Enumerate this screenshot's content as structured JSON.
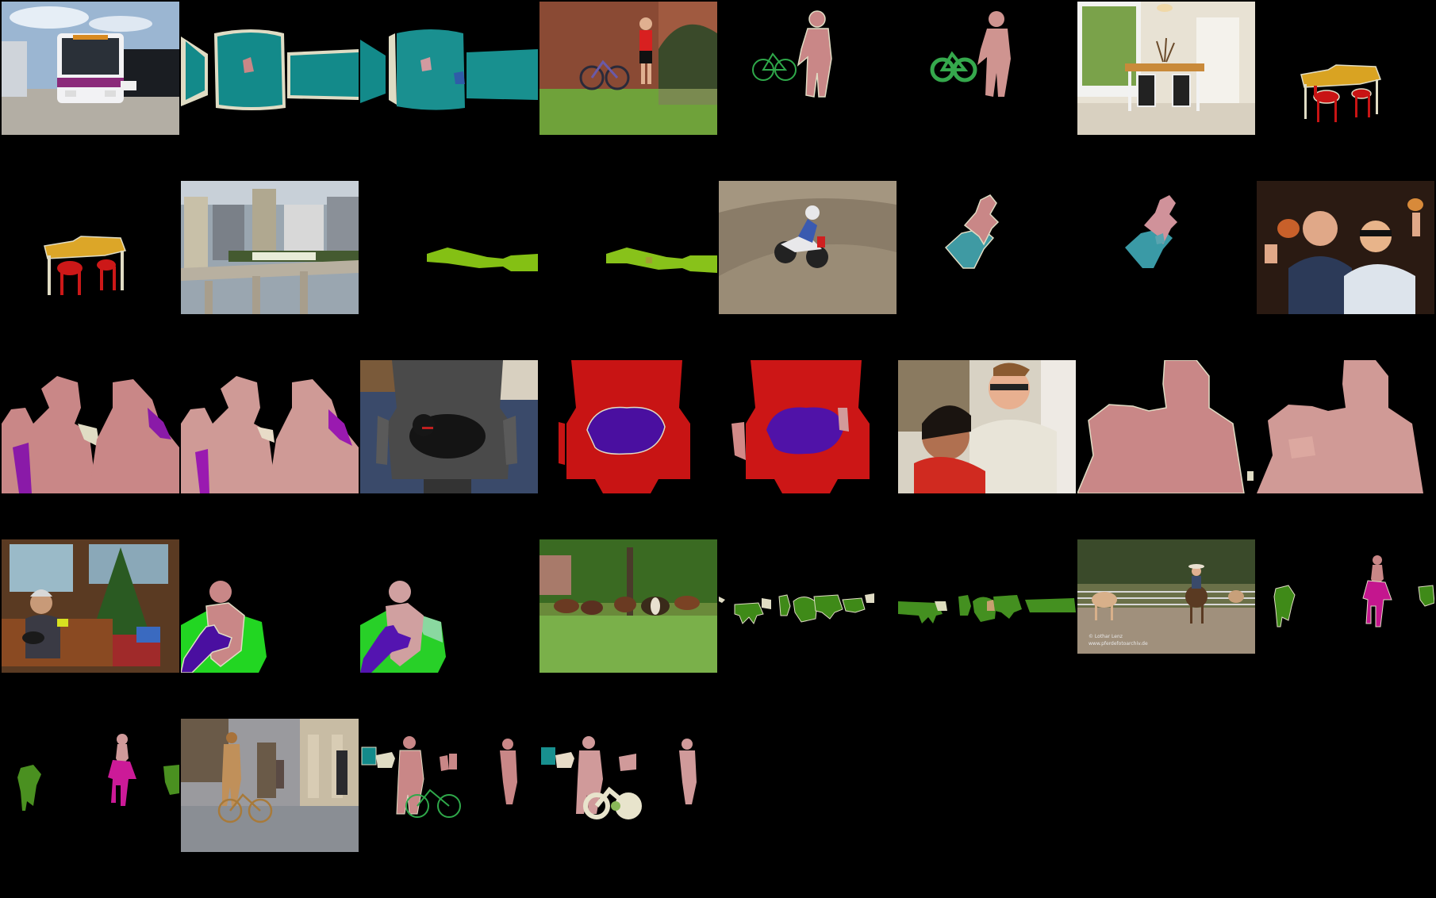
{
  "figure": {
    "watermark_line1": "©  Lothar Lenz",
    "watermark_line2": "www.pferdefotoarchiv.de"
  },
  "rows": [
    {
      "row": 1,
      "scenes": [
        {
          "id": "bus",
          "tiles": [
            "photo",
            "mask-gt",
            "mask-pred"
          ]
        },
        {
          "id": "cyclist-bridge",
          "tiles": [
            "photo",
            "mask-gt",
            "mask-pred"
          ]
        },
        {
          "id": "dining-room",
          "tiles": [
            "photo",
            "mask-gt"
          ]
        }
      ]
    },
    {
      "row": 2,
      "scenes": [
        {
          "id": "dining-room",
          "tiles": [
            "mask-pred"
          ]
        },
        {
          "id": "city-train",
          "tiles": [
            "photo",
            "mask-gt",
            "mask-pred"
          ]
        },
        {
          "id": "motocross",
          "tiles": [
            "photo",
            "mask-gt",
            "mask-pred"
          ]
        },
        {
          "id": "two-men",
          "tiles": [
            "photo"
          ]
        }
      ]
    },
    {
      "row": 3,
      "scenes": [
        {
          "id": "two-men",
          "tiles": [
            "mask-gt",
            "mask-pred"
          ]
        },
        {
          "id": "dog-chair",
          "tiles": [
            "photo",
            "mask-gt",
            "mask-pred"
          ]
        },
        {
          "id": "couple",
          "tiles": [
            "photo",
            "mask-gt",
            "mask-pred"
          ]
        }
      ]
    },
    {
      "row": 4,
      "scenes": [
        {
          "id": "christmas",
          "tiles": [
            "photo",
            "mask-gt",
            "mask-pred"
          ]
        },
        {
          "id": "cows-park",
          "tiles": [
            "photo",
            "mask-gt",
            "mask-pred"
          ]
        },
        {
          "id": "cowboy-horse",
          "tiles": [
            "photo",
            "mask-gt"
          ]
        }
      ]
    },
    {
      "row": 5,
      "scenes": [
        {
          "id": "cowboy-horse",
          "tiles": [
            "mask-pred"
          ]
        },
        {
          "id": "street-bicycle",
          "tiles": [
            "photo",
            "mask-gt",
            "mask-pred"
          ]
        }
      ]
    }
  ],
  "class_colors": {
    "bus": "#138a8a",
    "person": "#c98787",
    "bicycle": "#2fa84a",
    "dining-table": "#d9a322",
    "chair": "#c81414",
    "train": "#84c014",
    "motorbike": "#3f9aa3",
    "bottle": "#8a1aa8",
    "dog": "#4a0fa0",
    "sofa": "#22d622",
    "cow": "#3f8a18",
    "horse": "#c4168e",
    "boundary": "#e0dcc4"
  }
}
